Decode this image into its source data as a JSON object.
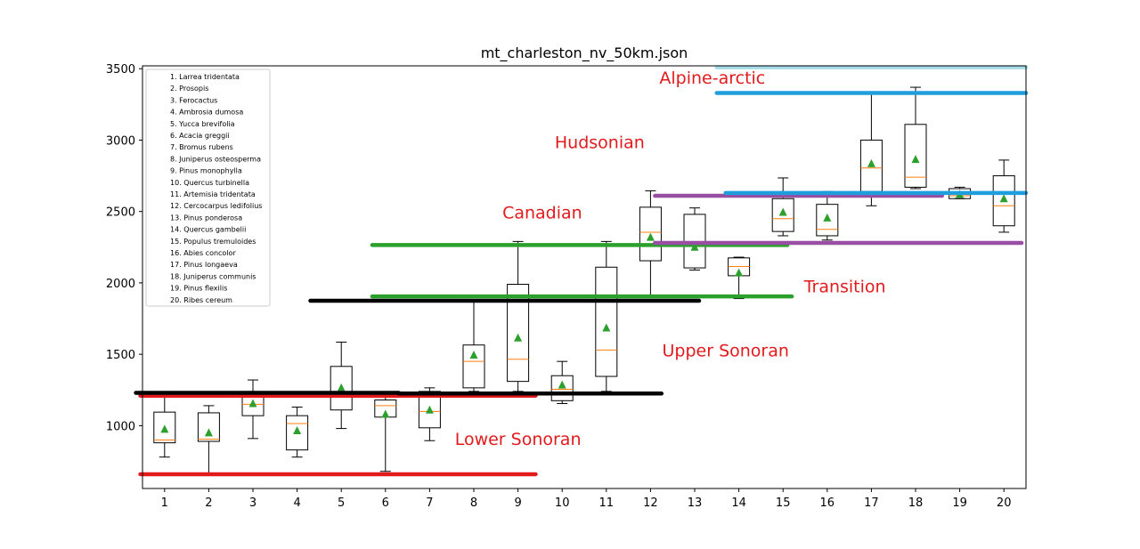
{
  "chart_data": {
    "type": "box",
    "title": "mt_charleston_nv_50km.json",
    "xlabel": "",
    "ylabel": "",
    "ylim": [
      560,
      3520
    ],
    "xlim": [
      0.5,
      20.5
    ],
    "yticks": [
      1000,
      1500,
      2000,
      2500,
      3000,
      3500
    ],
    "categories": [
      "1",
      "2",
      "3",
      "4",
      "5",
      "6",
      "7",
      "8",
      "9",
      "10",
      "11",
      "12",
      "13",
      "14",
      "15",
      "16",
      "17",
      "18",
      "19",
      "20"
    ],
    "legend": {
      "placement": "top-left",
      "entries": [
        "1. Larrea tridentata",
        "2. Prosopis",
        "3. Ferocactus",
        "4. Ambrosia dumosa",
        "5. Yucca brevifolia",
        "6. Acacia greggii",
        "7. Bromus rubens",
        "8. Juniperus osteosperma",
        "9. Pinus monophylla",
        "10. Quercus turbinella",
        "11. Artemisia tridentata",
        "12. Cercocarpus ledifolius",
        "13. Pinus ponderosa",
        "14. Quercus gambelii",
        "15. Populus tremuloides",
        "16. Abies concolor",
        "17. Pinus longaeva",
        "18. Juniperus communis",
        "19. Pinus flexilis",
        "20. Ribes cereum"
      ]
    },
    "boxes": [
      {
        "x": 1,
        "whislo": 780,
        "q1": 880,
        "med": 900,
        "q3": 1095,
        "whishi": 1220,
        "mean": 975
      },
      {
        "x": 2,
        "whislo": 660,
        "q1": 890,
        "med": 905,
        "q3": 1090,
        "whishi": 1140,
        "mean": 950
      },
      {
        "x": 3,
        "whislo": 910,
        "q1": 1070,
        "med": 1150,
        "q3": 1200,
        "whishi": 1320,
        "mean": 1155
      },
      {
        "x": 4,
        "whislo": 780,
        "q1": 830,
        "med": 1015,
        "q3": 1070,
        "whishi": 1130,
        "mean": 965
      },
      {
        "x": 5,
        "whislo": 980,
        "q1": 1110,
        "med": 1200,
        "q3": 1415,
        "whishi": 1585,
        "mean": 1265
      },
      {
        "x": 6,
        "whislo": 680,
        "q1": 1060,
        "med": 1140,
        "q3": 1180,
        "whishi": 1200,
        "mean": 1080
      },
      {
        "x": 7,
        "whislo": 895,
        "q1": 985,
        "med": 1100,
        "q3": 1240,
        "whishi": 1265,
        "mean": 1110
      },
      {
        "x": 8,
        "whislo": 1240,
        "q1": 1265,
        "med": 1450,
        "q3": 1565,
        "whishi": 1880,
        "mean": 1495
      },
      {
        "x": 9,
        "whislo": 1240,
        "q1": 1310,
        "med": 1465,
        "q3": 1990,
        "whishi": 2290,
        "mean": 1615
      },
      {
        "x": 10,
        "whislo": 1155,
        "q1": 1175,
        "med": 1255,
        "q3": 1350,
        "whishi": 1450,
        "mean": 1285
      },
      {
        "x": 11,
        "whislo": 1240,
        "q1": 1345,
        "med": 1530,
        "q3": 2110,
        "whishi": 2290,
        "mean": 1685
      },
      {
        "x": 12,
        "whislo": 1905,
        "q1": 2155,
        "med": 2355,
        "q3": 2530,
        "whishi": 2645,
        "mean": 2320
      },
      {
        "x": 13,
        "whislo": 2090,
        "q1": 2105,
        "med": 2270,
        "q3": 2480,
        "whishi": 2525,
        "mean": 2250
      },
      {
        "x": 14,
        "whislo": 1890,
        "q1": 2050,
        "med": 2115,
        "q3": 2175,
        "whishi": 2180,
        "mean": 2070
      },
      {
        "x": 15,
        "whislo": 2330,
        "q1": 2360,
        "med": 2450,
        "q3": 2590,
        "whishi": 2735,
        "mean": 2495
      },
      {
        "x": 16,
        "whislo": 2300,
        "q1": 2330,
        "med": 2375,
        "q3": 2550,
        "whishi": 2640,
        "mean": 2455
      },
      {
        "x": 17,
        "whislo": 2540,
        "q1": 2640,
        "med": 2805,
        "q3": 3000,
        "whishi": 3330,
        "mean": 2835
      },
      {
        "x": 18,
        "whislo": 2660,
        "q1": 2670,
        "med": 2740,
        "q3": 3110,
        "whishi": 3370,
        "mean": 2865
      },
      {
        "x": 19,
        "whislo": 2590,
        "q1": 2590,
        "med": 2610,
        "q3": 2660,
        "whishi": 2670,
        "mean": 2620
      },
      {
        "x": 20,
        "whislo": 2355,
        "q1": 2400,
        "med": 2540,
        "q3": 2750,
        "whishi": 2860,
        "mean": 2590
      }
    ],
    "zone_lines": [
      {
        "color": "#e31a1c",
        "x0": 0.45,
        "x1": 9.4,
        "y": 660
      },
      {
        "color": "#e31a1c",
        "x0": 0.45,
        "x1": 9.4,
        "y": 1210
      },
      {
        "color": "#000000",
        "x0": 0.35,
        "x1": 6.3,
        "y": 1230
      },
      {
        "color": "#000000",
        "x0": 6.3,
        "x1": 12.25,
        "y": 1225
      },
      {
        "color": "#000000",
        "x0": 4.3,
        "x1": 13.1,
        "y": 1875
      },
      {
        "color": "#2ca02c",
        "x0": 5.7,
        "x1": 15.2,
        "y": 1905
      },
      {
        "color": "#2ca02c",
        "x0": 5.7,
        "x1": 15.1,
        "y": 2265
      },
      {
        "color": "#984ea3",
        "x0": 12.1,
        "x1": 20.4,
        "y": 2280
      },
      {
        "color": "#984ea3",
        "x0": 12.1,
        "x1": 18.6,
        "y": 2610
      },
      {
        "color": "#1f9ede",
        "x0": 13.7,
        "x1": 20.5,
        "y": 2630
      },
      {
        "color": "#1f9ede",
        "x0": 13.5,
        "x1": 20.5,
        "y": 3330
      },
      {
        "color": "#a6dce8",
        "x0": 13.5,
        "x1": 20.5,
        "y": 3510
      }
    ],
    "zone_labels": [
      {
        "text": "Lower Sonoran",
        "x": 9.0,
        "y": 865
      },
      {
        "text": "Upper Sonoran",
        "x": 13.7,
        "y": 1485
      },
      {
        "text": "Transition",
        "x": 16.4,
        "y": 1935
      },
      {
        "text": "Canadian",
        "x": 9.55,
        "y": 2450
      },
      {
        "text": "Hudsonian",
        "x": 10.85,
        "y": 2945
      },
      {
        "text": "Alpine-arctic",
        "x": 13.4,
        "y": 3395
      }
    ],
    "colors": {
      "median": "#ff7f0e",
      "mean_marker": "#2ca02c",
      "box": "#000000",
      "zone_label": "#e31a1c"
    },
    "grid": false
  }
}
